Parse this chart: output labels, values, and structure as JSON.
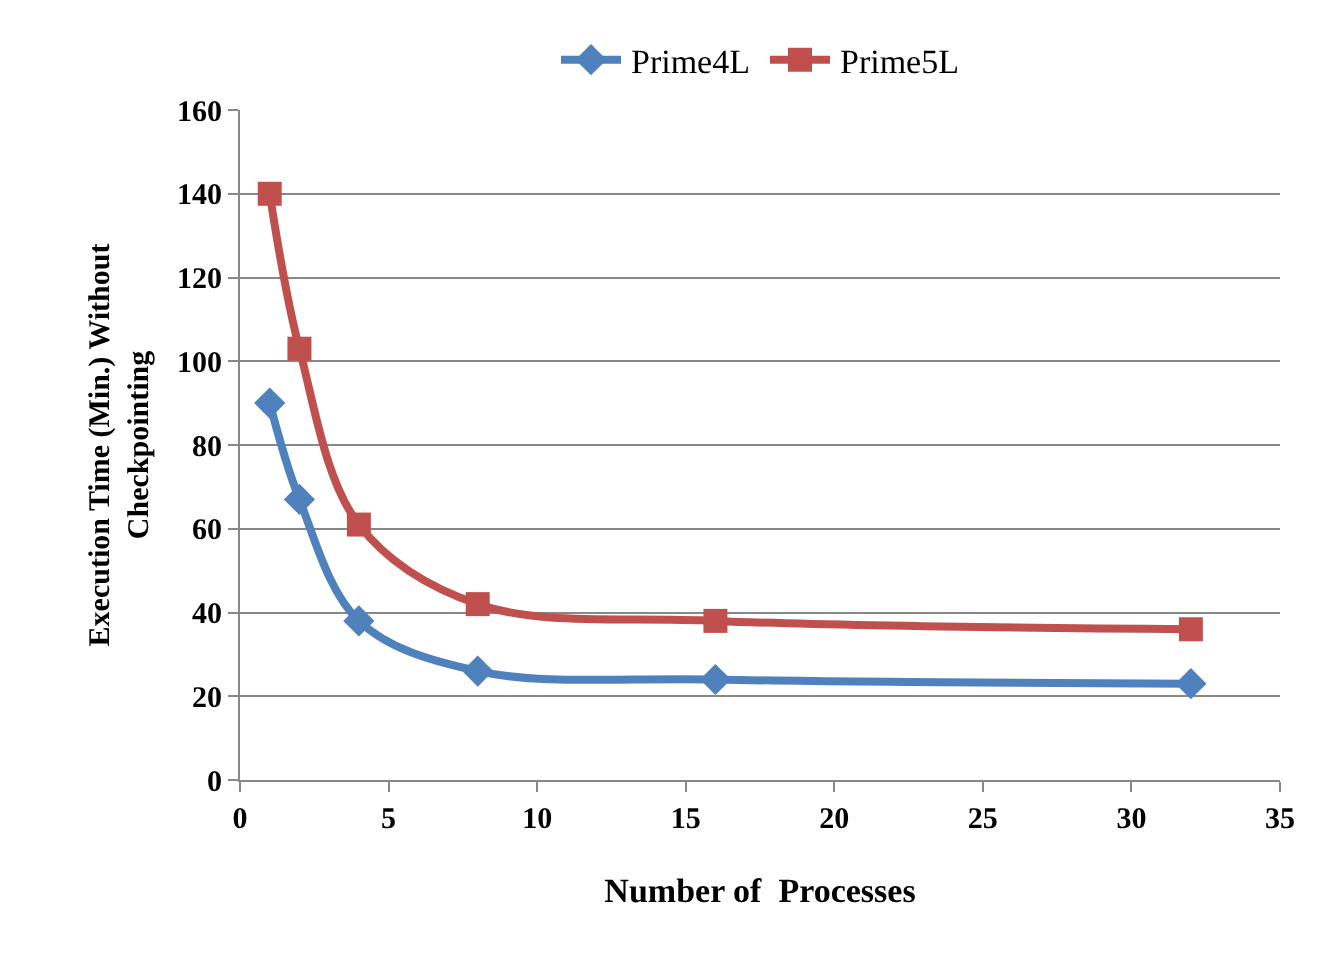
{
  "chart_data": {
    "type": "line",
    "xlabel": "Number of  Processes",
    "ylabel": "Execution Time (Min.) Without\nCheckpointing",
    "xlim": [
      0,
      35
    ],
    "xticks": [
      0,
      5,
      10,
      15,
      20,
      25,
      30,
      35
    ],
    "ylim": [
      0,
      160
    ],
    "yticks": [
      0,
      20,
      40,
      60,
      80,
      100,
      120,
      140,
      160
    ],
    "grid": "y",
    "legend": "top",
    "series": [
      {
        "name": "Prime4L",
        "color": "#4f81bd",
        "marker": "diamond",
        "x": [
          1,
          2,
          4,
          8,
          16,
          32
        ],
        "values": [
          90,
          67,
          38,
          26,
          24,
          23
        ]
      },
      {
        "name": "Prime5L",
        "color": "#c0504d",
        "marker": "square",
        "x": [
          1,
          2,
          4,
          8,
          16,
          32
        ],
        "values": [
          140,
          103,
          61,
          42,
          38,
          36
        ]
      }
    ]
  }
}
